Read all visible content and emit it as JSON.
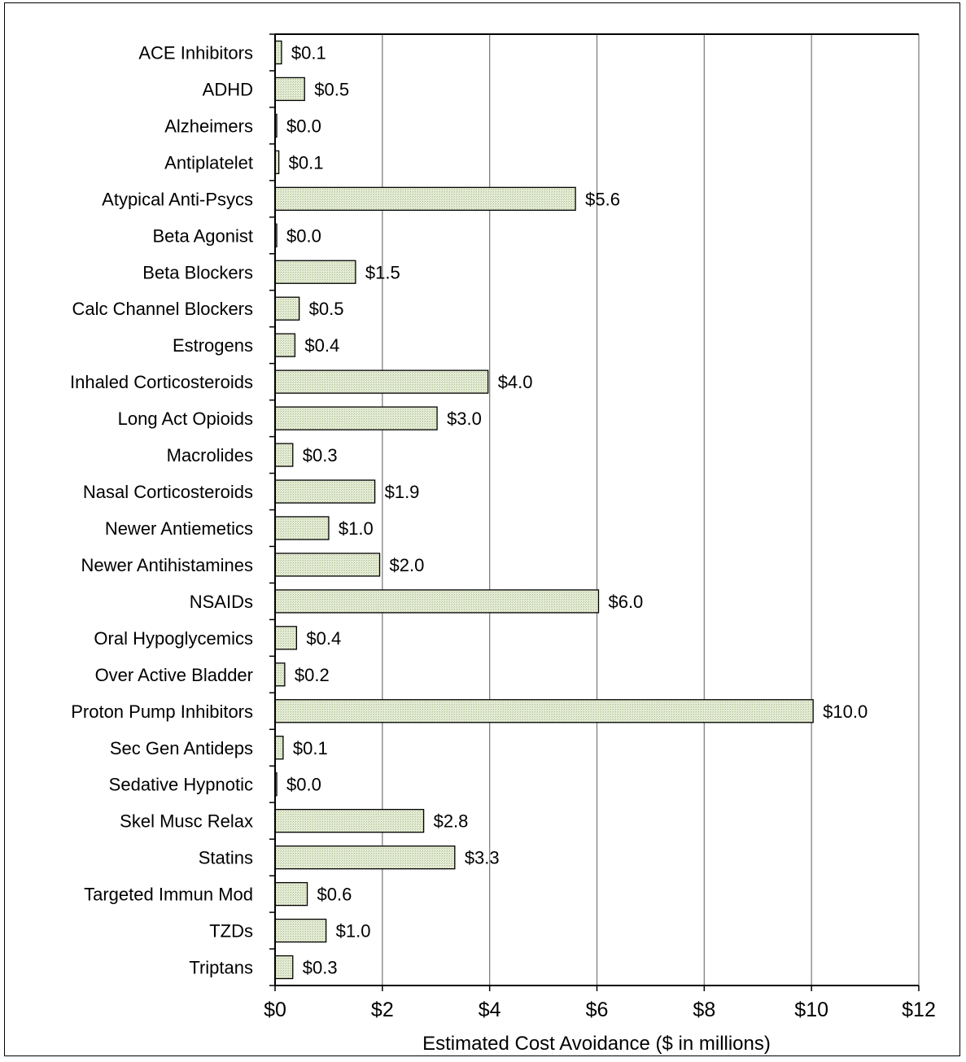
{
  "chart_data": {
    "type": "bar",
    "orientation": "horizontal",
    "categories": [
      "ACE Inhibitors",
      "ADHD",
      "Alzheimers",
      "Antiplatelet",
      "Atypical Anti-Psycs",
      "Beta Agonist",
      "Beta Blockers",
      "Calc Channel Blockers",
      "Estrogens",
      "Inhaled Corticosteroids",
      "Long Act Opioids",
      "Macrolides",
      "Nasal Corticosteroids",
      "Newer Antiemetics",
      "Newer Antihistamines",
      "NSAIDs",
      "Oral Hypoglycemics",
      "Over Active Bladder",
      "Proton Pump Inhibitors",
      "Sec Gen Antideps",
      "Sedative Hypnotic",
      "Skel Musc Relax",
      "Statins",
      "Targeted Immun Mod",
      "TZDs",
      "Triptans"
    ],
    "values": [
      0.12,
      0.55,
      0.03,
      0.07,
      5.6,
      0.03,
      1.5,
      0.45,
      0.37,
      3.97,
      3.02,
      0.33,
      1.86,
      1.0,
      1.95,
      6.03,
      0.4,
      0.18,
      10.03,
      0.15,
      0.03,
      2.77,
      3.35,
      0.6,
      0.95,
      0.33
    ],
    "data_labels": [
      "$0.1",
      "$0.5",
      "$0.0",
      "$0.1",
      "$5.6",
      "$0.0",
      "$1.5",
      "$0.5",
      "$0.4",
      "$4.0",
      "$3.0",
      "$0.3",
      "$1.9",
      "$1.0",
      "$2.0",
      "$6.0",
      "$0.4",
      "$0.2",
      "$10.0",
      "$0.1",
      "$0.0",
      "$2.8",
      "$3.3",
      "$0.6",
      "$1.0",
      "$0.3"
    ],
    "xticks": [
      0,
      2,
      4,
      6,
      8,
      10,
      12
    ],
    "xtick_labels": [
      "$0",
      "$2",
      "$4",
      "$6",
      "$8",
      "$10",
      "$12"
    ],
    "xlim": [
      0,
      12
    ],
    "xlabel": "Estimated Cost Avoidance ($ in millions)",
    "ylabel": "",
    "title": "",
    "grid": "vertical",
    "legend": "none",
    "colors": {
      "bar_fill": "#e6edd6",
      "bar_hatch": "#a9b98f",
      "bar_stroke": "#000000",
      "grid": "#808080",
      "axis": "#000000"
    }
  }
}
